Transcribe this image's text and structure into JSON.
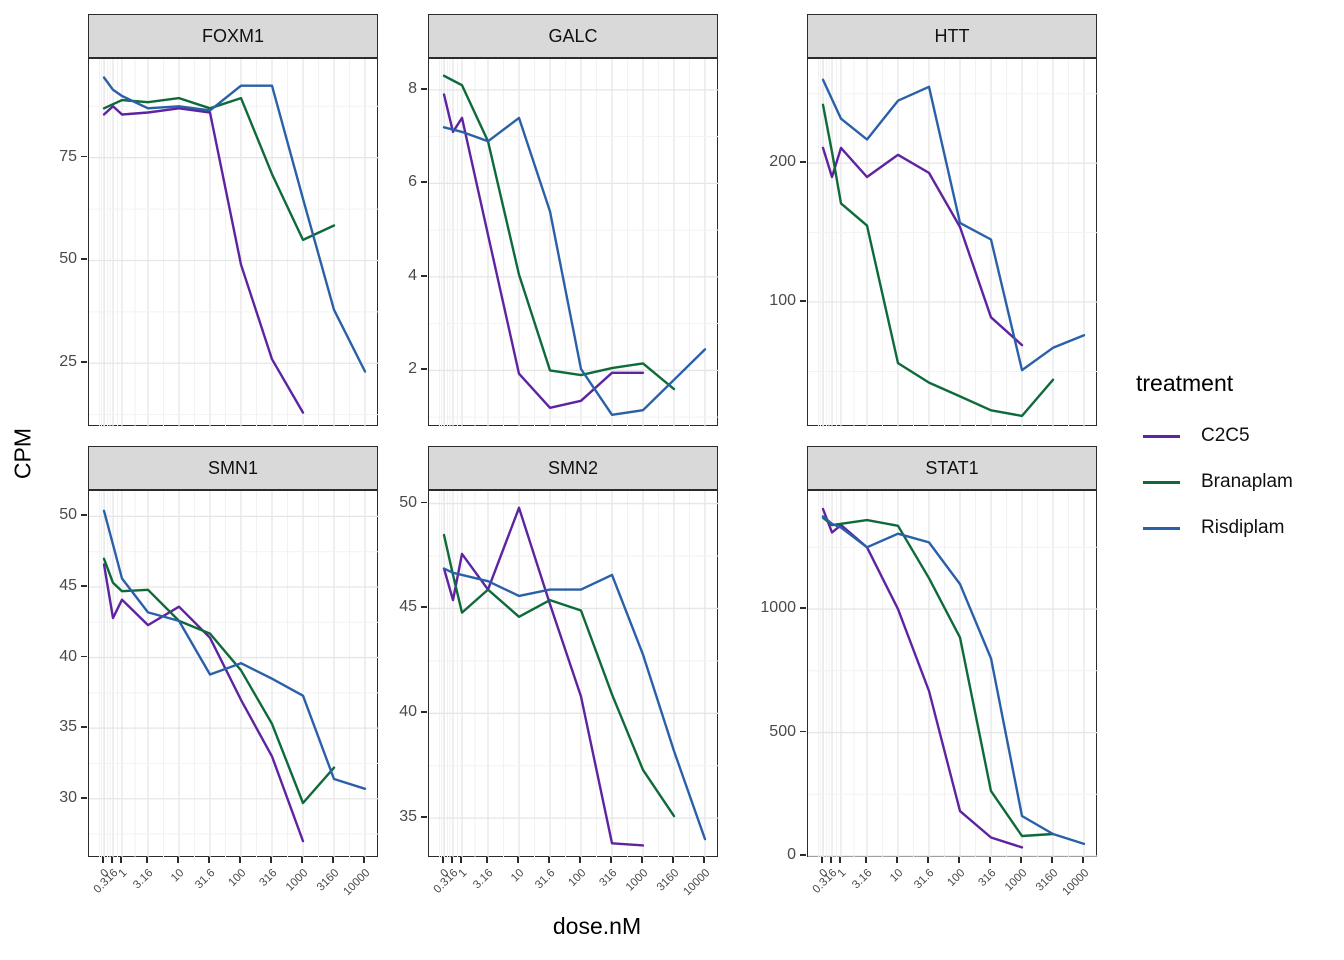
{
  "figure": {
    "ylabel": "CPM",
    "xlabel": "dose.nM",
    "legend": {
      "title": "treatment",
      "items": [
        {
          "label": "C2C5",
          "color": "#5D23A0"
        },
        {
          "label": "Branaplam",
          "color": "#0E6B39"
        },
        {
          "label": "Risdiplam",
          "color": "#2B60A9"
        }
      ]
    }
  },
  "chart_data": {
    "type": "line",
    "title": "",
    "xlabel": "dose.nM",
    "ylabel": "CPM",
    "legend_position": "right",
    "grid": true,
    "x_scale": "pseudo-log",
    "doses": [
      0,
      0.316,
      1,
      3.16,
      10,
      31.6,
      100,
      316,
      1000,
      3160,
      10000
    ],
    "x_tick_labels": [
      "0",
      "0.316",
      "1",
      "3.16",
      "10",
      "31.6",
      "100",
      "316",
      "1000",
      "3160",
      "10000"
    ],
    "facets": [
      {
        "title": "FOXM1",
        "ylim": [
          9.5,
          99
        ],
        "yticks": [
          25,
          50,
          75
        ],
        "series": [
          {
            "name": "C2C5",
            "values": [
              85.5,
              87.5,
              85.5,
              86,
              87,
              86,
              49,
              26,
              13,
              null,
              null
            ]
          },
          {
            "name": "Branaplam",
            "values": [
              87,
              88,
              89,
              88.5,
              89.5,
              87,
              89.5,
              71,
              55,
              58.5,
              null
            ]
          },
          {
            "name": "Risdiplam",
            "values": [
              94.5,
              91.5,
              90,
              87,
              87.5,
              86.5,
              92.5,
              92.5,
              65,
              38,
              23
            ]
          }
        ]
      },
      {
        "title": "GALC",
        "ylim": [
          0.79,
          8.66
        ],
        "yticks": [
          2,
          4,
          6,
          8
        ],
        "series": [
          {
            "name": "C2C5",
            "values": [
              7.9,
              7.1,
              7.4,
              4.9,
              1.93,
              1.2,
              1.35,
              1.95,
              1.95,
              null,
              null
            ]
          },
          {
            "name": "Branaplam",
            "values": [
              8.3,
              8.2,
              8.1,
              6.9,
              4.05,
              2.0,
              1.9,
              2.05,
              2.15,
              1.6,
              null
            ]
          },
          {
            "name": "Risdiplam",
            "values": [
              7.2,
              7.15,
              7.1,
              6.9,
              7.4,
              5.4,
              2.03,
              1.05,
              1.15,
              1.8,
              2.45
            ]
          }
        ]
      },
      {
        "title": "HTT",
        "ylim": [
          10,
          275
        ],
        "yticks": [
          100,
          200
        ],
        "series": [
          {
            "name": "C2C5",
            "values": [
              211,
              190,
              211,
              190,
              206,
              193,
              154,
              89,
              69,
              null,
              null
            ]
          },
          {
            "name": "Branaplam",
            "values": [
              242,
              208,
              171,
              155,
              56,
              42,
              32,
              22,
              18,
              44,
              null
            ]
          },
          {
            "name": "Risdiplam",
            "values": [
              260,
              246,
              232,
              217,
              245,
              255,
              157,
              145,
              51,
              67,
              76
            ]
          }
        ]
      },
      {
        "title": "SMN1",
        "ylim": [
          25.8,
          51.8
        ],
        "yticks": [
          30,
          35,
          40,
          45,
          50
        ],
        "series": [
          {
            "name": "C2C5",
            "values": [
              46.6,
              42.8,
              44.1,
              42.3,
              43.6,
              41.4,
              37.0,
              33.0,
              27.0,
              null,
              null
            ]
          },
          {
            "name": "Branaplam",
            "values": [
              47.0,
              45.3,
              44.7,
              44.8,
              42.6,
              41.7,
              39.1,
              35.3,
              29.7,
              32.2,
              null
            ]
          },
          {
            "name": "Risdiplam",
            "values": [
              50.4,
              48.0,
              45.6,
              43.2,
              42.6,
              38.8,
              39.6,
              38.5,
              37.3,
              31.4,
              30.7
            ]
          }
        ]
      },
      {
        "title": "SMN2",
        "ylim": [
          33.1,
          50.6
        ],
        "yticks": [
          35,
          40,
          45,
          50
        ],
        "series": [
          {
            "name": "C2C5",
            "values": [
              46.9,
              45.4,
              47.6,
              45.9,
              49.8,
              45.2,
              40.8,
              33.8,
              33.7,
              null,
              null
            ]
          },
          {
            "name": "Branaplam",
            "values": [
              48.5,
              46.6,
              44.8,
              45.9,
              44.6,
              45.4,
              44.9,
              40.9,
              37.3,
              35.1,
              null
            ]
          },
          {
            "name": "Risdiplam",
            "values": [
              46.9,
              46.7,
              46.6,
              46.3,
              45.6,
              45.9,
              45.9,
              46.6,
              42.8,
              38.2,
              34.0
            ]
          }
        ]
      },
      {
        "title": "STAT1",
        "ylim": [
          -8,
          1478
        ],
        "yticks": [
          0,
          500,
          1000
        ],
        "series": [
          {
            "name": "C2C5",
            "values": [
              1405,
              1310,
              1340,
              1250,
              1000,
              668,
              182,
              75,
              35,
              null,
              null
            ]
          },
          {
            "name": "Branaplam",
            "values": [
              1370,
              1340,
              1345,
              1360,
              1337,
              1125,
              885,
              263,
              81,
              89,
              null
            ]
          },
          {
            "name": "Risdiplam",
            "values": [
              1375,
              1345,
              1330,
              1250,
              1305,
              1270,
              1101,
              800,
              162,
              89,
              49
            ]
          }
        ]
      }
    ]
  }
}
